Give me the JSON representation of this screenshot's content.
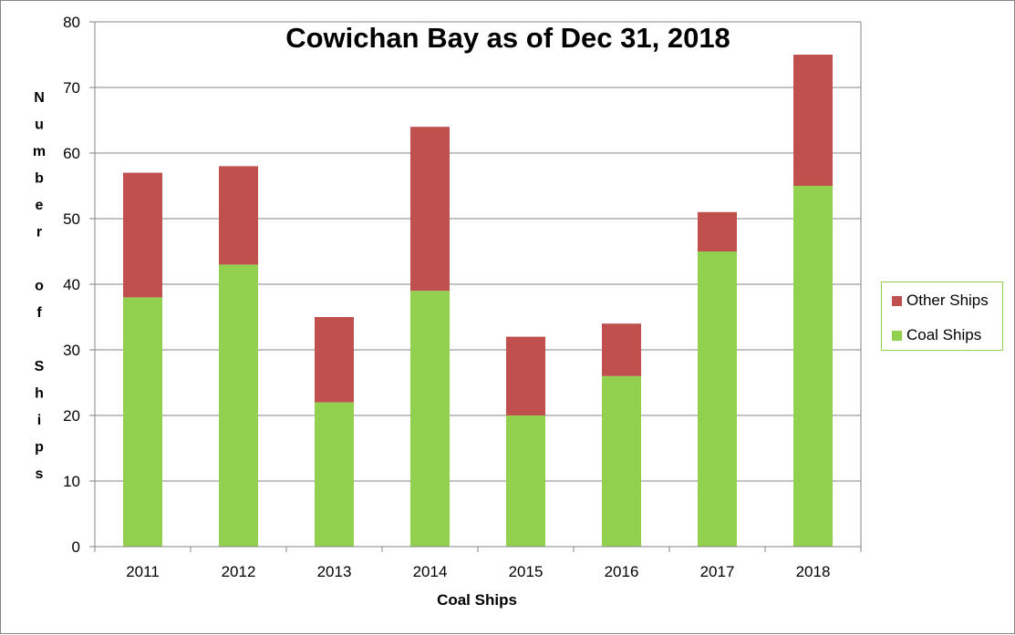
{
  "chart_data": {
    "type": "bar",
    "stacked": true,
    "title": "Cowichan Bay as of Dec 31, 2018",
    "xlabel": "Coal Ships",
    "ylabel": "Number of Ships",
    "categories": [
      "2011",
      "2012",
      "2013",
      "2014",
      "2015",
      "2016",
      "2017",
      "2018"
    ],
    "series": [
      {
        "name": "Coal Ships",
        "color": "#92d050",
        "values": [
          38,
          43,
          22,
          39,
          20,
          26,
          45,
          55
        ]
      },
      {
        "name": "Other Ships",
        "color": "#c0504d",
        "values": [
          19,
          15,
          13,
          25,
          12,
          8,
          6,
          20
        ]
      }
    ],
    "ylim": [
      0,
      80
    ],
    "yticks": [
      0,
      10,
      20,
      30,
      40,
      50,
      60,
      70,
      80
    ],
    "grid": true,
    "legend_placement": "right",
    "legend_order": [
      "Other Ships",
      "Coal Ships"
    ]
  }
}
